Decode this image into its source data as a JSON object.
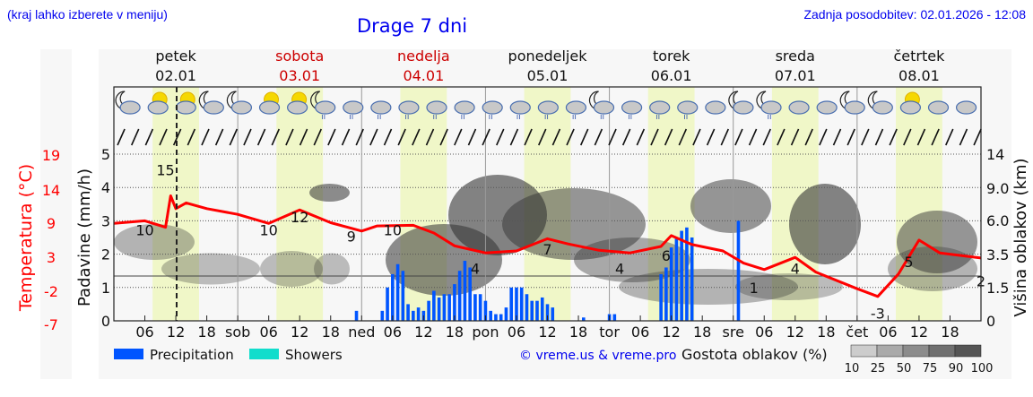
{
  "header": {
    "hint": "(kraj lahko izberete v meniju)",
    "title": "Drage 7 dni",
    "updated": "Zadnja posodobitev: 02.01.2026 - 12:08"
  },
  "days": [
    {
      "name": "petek",
      "date": "02.01",
      "weekend": false
    },
    {
      "name": "sobota",
      "date": "03.01",
      "weekend": true
    },
    {
      "name": "nedelja",
      "date": "04.01",
      "weekend": true
    },
    {
      "name": "ponedeljek",
      "date": "05.01",
      "weekend": false
    },
    {
      "name": "torek",
      "date": "06.01",
      "weekend": false
    },
    {
      "name": "sreda",
      "date": "07.01",
      "weekend": false
    },
    {
      "name": "četrtek",
      "date": "08.01",
      "weekend": false
    }
  ],
  "x_ticks": [
    "06",
    "12",
    "18",
    "sob",
    "06",
    "12",
    "18",
    "ned",
    "06",
    "12",
    "18",
    "pon",
    "06",
    "12",
    "18",
    "tor",
    "06",
    "12",
    "18",
    "sre",
    "06",
    "12",
    "18",
    "čet",
    "06",
    "12",
    "18"
  ],
  "axes": {
    "temp_label": "Temperatura (°C)",
    "temp_ticks": [
      "19",
      "14",
      "9",
      "3",
      "-2",
      "-7"
    ],
    "precip_label": "Padavine (mm/h)",
    "precip_ticks": [
      "0",
      "1",
      "2",
      "3",
      "4",
      "5"
    ],
    "cloud_label": "Višina oblakov (km)",
    "cloud_ticks": [
      "0",
      "1.5",
      "3.5",
      "6.0",
      "9.0",
      "14"
    ]
  },
  "legend": {
    "precipitation": "Precipitation",
    "showers": "Showers",
    "copyright": "© vreme.us & vreme.pro",
    "density_label": "Gostota oblakov (%)",
    "density_ticks": [
      "10",
      "25",
      "50",
      "75",
      "90",
      "100"
    ]
  },
  "colors": {
    "precipitation": "#0055ff",
    "showers": "#11ddcc",
    "temperature": "#ff0000",
    "weekend": "#cc0000",
    "daylight": "#f0f7c8",
    "link": "#0000ee"
  },
  "icons": [
    "moon-cloud",
    "sun-cloud",
    "sun-cloud",
    "moon-cloud",
    "moon-cloud",
    "sun-cloud",
    "sun-cloud",
    "moon-cloud-rain",
    "cloud-rain",
    "cloud-rain",
    "cloud-rain",
    "cloud-rain",
    "cloud-rain",
    "cloud-rain",
    "cloud-rain",
    "cloud-rain",
    "cloud-rain",
    "moon-cloud-rain",
    "cloud-rain",
    "cloud-rain",
    "cloud-rain",
    "cloud",
    "moon-cloud",
    "moon-cloud-rain",
    "cloud",
    "cloud",
    "moon-cloud",
    "moon-cloud",
    "sun-cloud",
    "cloud",
    "cloud"
  ],
  "chart_data": {
    "type": "line",
    "title": "Drage 7 dni",
    "x_hours_from_start": [
      0,
      6,
      10,
      12,
      14,
      18,
      24,
      36,
      48,
      54,
      60,
      66,
      72,
      78,
      84,
      90,
      96,
      102,
      108,
      114,
      120,
      126,
      132,
      138,
      144,
      150,
      156,
      162,
      168
    ],
    "temperature": {
      "name": "Temperatura (°C)",
      "labels": [
        {
          "hour": 6,
          "value": 10
        },
        {
          "hour": 10,
          "value": 15
        },
        {
          "hour": 30,
          "value": 10
        },
        {
          "hour": 36,
          "value": 12
        },
        {
          "hour": 46,
          "value": 9
        },
        {
          "hour": 54,
          "value": 10
        },
        {
          "hour": 70,
          "value": 4
        },
        {
          "hour": 84,
          "value": 7
        },
        {
          "hour": 98,
          "value": 4
        },
        {
          "hour": 107,
          "value": 6
        },
        {
          "hour": 124,
          "value": 1
        },
        {
          "hour": 132,
          "value": 4
        },
        {
          "hour": 148,
          "value": -3
        },
        {
          "hour": 154,
          "value": 5
        },
        {
          "hour": 168,
          "value": 2
        }
      ],
      "ylim": [
        -7,
        19
      ]
    },
    "precipitation": {
      "name": "Precipitation",
      "unit": "mm/h",
      "bars": [
        {
          "hour": 47,
          "value": 0.3
        },
        {
          "hour": 52,
          "value": 0.3
        },
        {
          "hour": 53,
          "value": 1.0
        },
        {
          "hour": 54,
          "value": 1.4
        },
        {
          "hour": 55,
          "value": 1.7
        },
        {
          "hour": 56,
          "value": 1.5
        },
        {
          "hour": 57,
          "value": 0.5
        },
        {
          "hour": 58,
          "value": 0.3
        },
        {
          "hour": 59,
          "value": 0.4
        },
        {
          "hour": 60,
          "value": 0.3
        },
        {
          "hour": 61,
          "value": 0.6
        },
        {
          "hour": 62,
          "value": 0.9
        },
        {
          "hour": 63,
          "value": 0.7
        },
        {
          "hour": 64,
          "value": 0.8
        },
        {
          "hour": 65,
          "value": 0.8
        },
        {
          "hour": 66,
          "value": 1.1
        },
        {
          "hour": 67,
          "value": 1.5
        },
        {
          "hour": 68,
          "value": 1.8
        },
        {
          "hour": 69,
          "value": 1.6
        },
        {
          "hour": 70,
          "value": 0.8
        },
        {
          "hour": 71,
          "value": 0.8
        },
        {
          "hour": 72,
          "value": 0.6
        },
        {
          "hour": 73,
          "value": 0.3
        },
        {
          "hour": 74,
          "value": 0.2
        },
        {
          "hour": 75,
          "value": 0.2
        },
        {
          "hour": 76,
          "value": 0.4
        },
        {
          "hour": 77,
          "value": 1.0
        },
        {
          "hour": 78,
          "value": 1.0
        },
        {
          "hour": 79,
          "value": 1.0
        },
        {
          "hour": 80,
          "value": 0.8
        },
        {
          "hour": 81,
          "value": 0.6
        },
        {
          "hour": 82,
          "value": 0.6
        },
        {
          "hour": 83,
          "value": 0.7
        },
        {
          "hour": 84,
          "value": 0.5
        },
        {
          "hour": 85,
          "value": 0.4
        },
        {
          "hour": 91,
          "value": 0.1
        },
        {
          "hour": 96,
          "value": 0.2
        },
        {
          "hour": 97,
          "value": 0.2
        },
        {
          "hour": 106,
          "value": 1.4
        },
        {
          "hour": 107,
          "value": 1.6
        },
        {
          "hour": 108,
          "value": 2.2
        },
        {
          "hour": 109,
          "value": 2.5
        },
        {
          "hour": 110,
          "value": 2.7
        },
        {
          "hour": 111,
          "value": 2.8
        },
        {
          "hour": 112,
          "value": 2.5
        },
        {
          "hour": 121,
          "value": 3.0
        }
      ]
    },
    "xlabel": "",
    "ylabel": "Padavine (mm/h)",
    "ylim": [
      0,
      5
    ],
    "y2label": "Višina oblakov (km)",
    "grid": true
  }
}
